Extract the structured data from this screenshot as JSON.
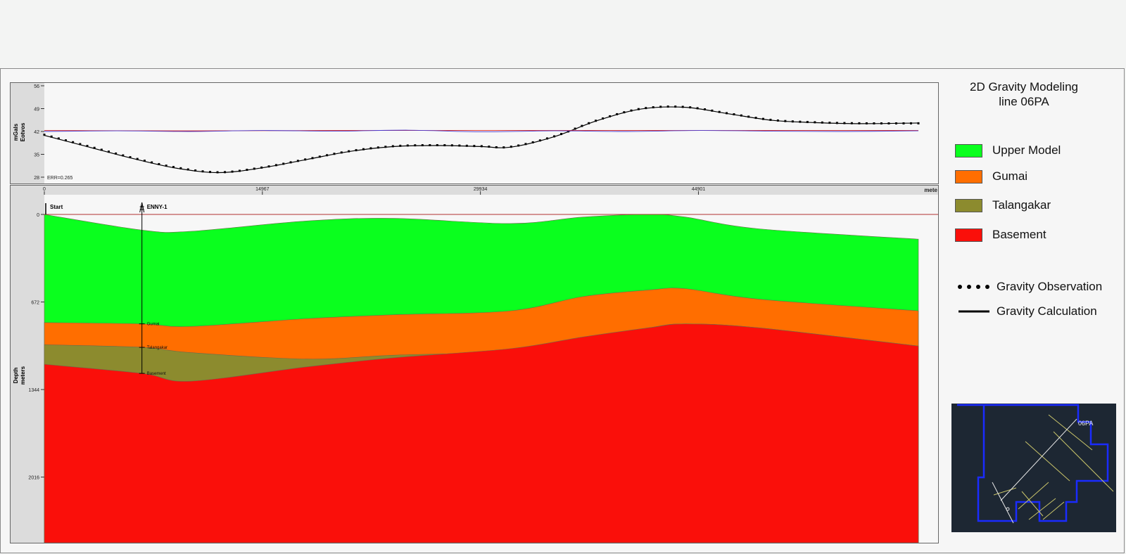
{
  "legend": {
    "title_line1": "2D Gravity Modeling",
    "title_line2": "line 06PA",
    "layers": [
      {
        "label": "Upper Model",
        "color": "#0aff1e"
      },
      {
        "label": "Gumai",
        "color": "#ff6e00"
      },
      {
        "label": "Talangakar",
        "color": "#8c8b2e"
      },
      {
        "label": "Basement",
        "color": "#fa0f0a"
      }
    ],
    "gravity_observation_label": "Gravity Observation",
    "gravity_calculation_label": "Gravity Calculation"
  },
  "map_inset": {
    "line_label": "06PA"
  },
  "chart_data": [
    {
      "type": "line",
      "ylabel_line1": "mGals",
      "ylabel_line2": "Eotvos",
      "ylim": [
        28,
        56
      ],
      "y_ticks": [
        "56",
        "49",
        "42",
        "35",
        "28"
      ],
      "error_label": "ERR=0.265",
      "x_ticks": [
        "0",
        "14967",
        "29934",
        "44901"
      ],
      "x_unit_label": "mete",
      "xlim": [
        0,
        60000
      ],
      "series": [
        {
          "name": "Gravity Observation",
          "style": "dotted",
          "color": "#000000",
          "x": [
            0,
            3000,
            6000,
            9000,
            12000,
            15000,
            18000,
            21000,
            24000,
            27000,
            29934,
            32000,
            35000,
            38000,
            41000,
            44000,
            47000,
            50000,
            53000,
            56000,
            60000
          ],
          "y": [
            41.0,
            37.5,
            34.0,
            31.0,
            29.5,
            31.0,
            33.5,
            36.0,
            37.5,
            37.8,
            37.5,
            37.3,
            40.5,
            45.5,
            49.0,
            49.5,
            47.5,
            45.5,
            44.8,
            44.5,
            44.5
          ]
        },
        {
          "name": "Gravity Calculation",
          "style": "solid",
          "color": "#000000",
          "x": [
            0,
            3000,
            6000,
            9000,
            12000,
            15000,
            18000,
            21000,
            24000,
            27000,
            29934,
            32000,
            35000,
            38000,
            41000,
            44000,
            47000,
            50000,
            53000,
            56000,
            60000
          ],
          "y": [
            40.8,
            37.3,
            33.8,
            30.8,
            29.4,
            30.9,
            33.4,
            35.9,
            37.4,
            37.7,
            37.4,
            37.2,
            40.4,
            45.4,
            48.9,
            49.4,
            47.4,
            45.4,
            44.7,
            44.4,
            44.6
          ]
        },
        {
          "name": "Error (red)",
          "style": "solid",
          "color": "#d42020",
          "x": [
            0,
            10000,
            20000,
            30000,
            40000,
            50000,
            60000
          ],
          "y": [
            42.3,
            42.2,
            42.3,
            42.3,
            42.3,
            42.3,
            42.3
          ]
        },
        {
          "name": "Error (blue)",
          "style": "solid",
          "color": "#4a3bd0",
          "x": [
            0,
            5000,
            10000,
            15000,
            20000,
            25000,
            30000,
            35000,
            40000,
            45000,
            50000,
            55000,
            60000
          ],
          "y": [
            42.0,
            42.2,
            42.0,
            42.3,
            42.1,
            42.4,
            41.9,
            42.2,
            42.0,
            42.3,
            42.1,
            42.0,
            42.2
          ]
        }
      ]
    },
    {
      "type": "area",
      "ylabel_line1": "Depth",
      "ylabel_line2": "meters",
      "ylim": [
        0,
        2520
      ],
      "y_ticks": [
        "0",
        "672",
        "1344",
        "2016"
      ],
      "x": [
        0,
        6700,
        10000,
        18000,
        24000,
        32000,
        37000,
        41500,
        44000,
        49000,
        60000
      ],
      "horizons": [
        {
          "name": "Upper Model top",
          "depth": [
            0,
            120,
            130,
            50,
            30,
            70,
            20,
            0,
            20,
            110,
            190
          ]
        },
        {
          "name": "Gumai top",
          "depth": [
            830,
            840,
            860,
            800,
            770,
            740,
            630,
            580,
            570,
            650,
            740
          ]
        },
        {
          "name": "Talangakar top",
          "depth": [
            1000,
            1020,
            1060,
            1110,
            1080,
            1050,
            960,
            870,
            840,
            870,
            1010
          ]
        },
        {
          "name": "Basement top",
          "depth": [
            1150,
            1220,
            1280,
            1170,
            1100,
            1030,
            940,
            870,
            840,
            870,
            1010
          ]
        }
      ],
      "wells": [
        {
          "name": "ENNY-1",
          "x": 6700,
          "markers": [
            {
              "label": "Gumai",
              "depth": 840
            },
            {
              "label": "Talangakar",
              "depth": 1020
            },
            {
              "label": "Basement",
              "depth": 1220
            }
          ]
        }
      ],
      "start_label": "Start"
    }
  ]
}
